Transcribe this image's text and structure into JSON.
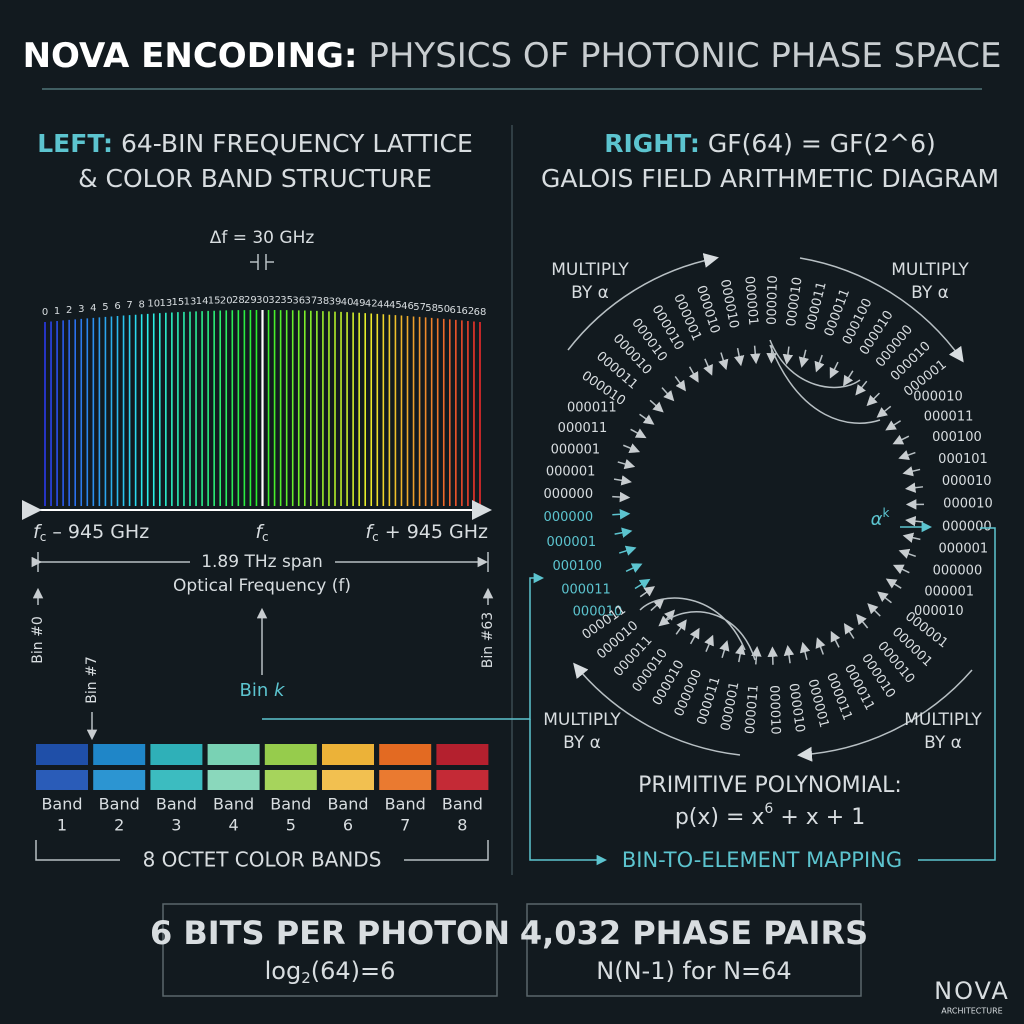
{
  "header": {
    "title_bold": "NOVA ENCODING:",
    "title_rest": " PHYSICS OF PHOTONIC PHASE SPACE"
  },
  "left": {
    "heading_bold": "LEFT:",
    "heading_rest": " 64-BIN FREQUENCY LATTICE",
    "heading_line2": "& COLOR BAND STRUCTURE",
    "delta": "Δf = 30 GHz",
    "bin_labels": [
      "0",
      "1",
      "2",
      "3",
      "4",
      "5",
      "6",
      "7",
      "8",
      "10",
      "13",
      "15",
      "13",
      "14",
      "15",
      "20",
      "28",
      "29",
      "30",
      "32",
      "35",
      "36",
      "37",
      "38",
      "39",
      "40",
      "49",
      "42",
      "44",
      "45",
      "46",
      "57",
      "58",
      "50",
      "61",
      "62",
      "68"
    ],
    "edge_left": {
      "f": "f",
      "sub": "c",
      "text": " – 945 GHz"
    },
    "center": {
      "f": "f",
      "sub": "c"
    },
    "edge_right": {
      "f": "f",
      "sub": "c",
      "text": " + 945 GHz"
    },
    "span": "1.89 THz span",
    "axis": "Optical Frequency (f)",
    "bin_first": "Bin #0",
    "bin_last": "Bin #63",
    "bin_seven": "Bin #7",
    "bin_k": {
      "text": "Bin ",
      "k": "k"
    },
    "bands": [
      [
        "Band",
        "1"
      ],
      [
        "Band",
        "2"
      ],
      [
        "Band",
        "3"
      ],
      [
        "Band",
        "4"
      ],
      [
        "Band",
        "5"
      ],
      [
        "Band",
        "6"
      ],
      [
        "Band",
        "7"
      ],
      [
        "Band",
        "8"
      ]
    ],
    "band_colors_top": [
      "#1f4fa8",
      "#1f86c8",
      "#2fb0b8",
      "#79d2b4",
      "#96cc4c",
      "#ecb238",
      "#e36a22",
      "#b4202e"
    ],
    "band_colors_bottom": [
      "#2a5cb8",
      "#2c95d2",
      "#3cbcc0",
      "#8ad8bc",
      "#a6d45c",
      "#f2c050",
      "#ea7a30",
      "#c42a36"
    ],
    "bands_caption": "8 OCTET COLOR BANDS"
  },
  "right": {
    "heading_bold": "RIGHT:",
    "heading_rest": " GF(64) = GF(2^6)",
    "heading_line2": "GALOIS FIELD ARITHMETIC DIAGRAM",
    "multiply": [
      [
        "MULTIPLY",
        "BY α"
      ],
      [
        "MULTIPLY",
        "BY α"
      ],
      [
        "MULTIPLY",
        "BY α"
      ],
      [
        "MULTIPLY",
        "BY α"
      ]
    ],
    "ring_white": [
      "000000",
      "000001",
      "000001",
      "000011",
      "000011",
      "000010",
      "000011",
      "000010",
      "000010",
      "000010",
      "000001",
      "000010",
      "000010",
      "000001",
      "000010",
      "000010",
      "000011",
      "000011",
      "000100",
      "000010",
      "000000",
      "000010",
      "000001",
      "000010",
      "000011",
      "000100",
      "000101",
      "000010",
      "000010",
      "000000",
      "000001",
      "000000",
      "000001",
      "000010",
      "000001",
      "000001",
      "000010",
      "000010",
      "000011",
      "000011",
      "000001",
      "000010",
      "000010",
      "000011",
      "000001",
      "000011",
      "000000",
      "000010",
      "000010",
      "000011",
      "000010",
      "000011"
    ],
    "ring_cyan": [
      "000000",
      "000001",
      "000100",
      "000011",
      "000010"
    ],
    "alpha": {
      "a": "α",
      "k": "k"
    },
    "poly_title": "PRIMITIVE POLYNOMIAL:",
    "poly": {
      "a": "p(x) = x",
      "sup": "6",
      "b": " + x + 1"
    },
    "mapping": "BIN-TO-ELEMENT MAPPING"
  },
  "footer": {
    "bits": {
      "title": "6 BITS PER PHOTON",
      "log": "log",
      "sub": "2",
      "rest": "(64)=6"
    },
    "pairs": {
      "title": "4,032 PHASE PAIRS",
      "formula": "N(N-1) for N=64"
    }
  },
  "logo": {
    "name": "NOVA",
    "tag": "ARCHITECTURE"
  }
}
